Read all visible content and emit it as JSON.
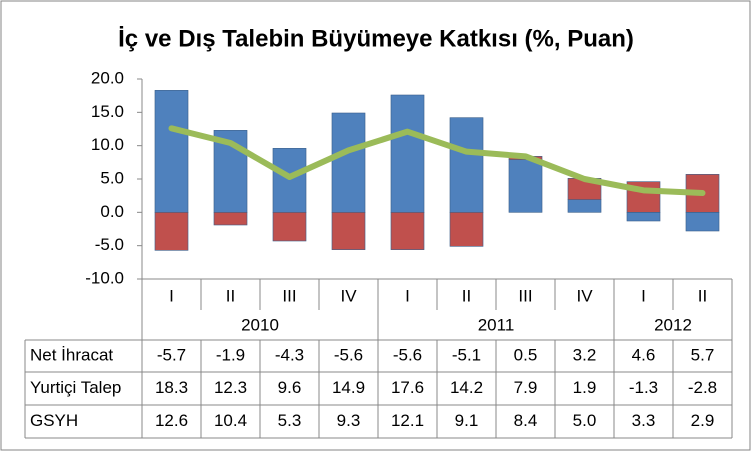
{
  "chart_data": {
    "type": "bar",
    "title": "İç ve Dış Talebin Büyümeye Katkısı (%, Puan)",
    "categories": [
      "I",
      "II",
      "III",
      "IV",
      "I",
      "II",
      "III",
      "IV",
      "I",
      "II"
    ],
    "year_labels": [
      "2010",
      "2011",
      "2012"
    ],
    "series": [
      {
        "name": "Net İhracat",
        "color": "#c0504d",
        "values": [
          -5.7,
          -1.9,
          -4.3,
          -5.6,
          -5.6,
          -5.1,
          0.5,
          3.2,
          4.6,
          5.7
        ]
      },
      {
        "name": "Yurtiçi Talep",
        "color": "#4f81bd",
        "values": [
          18.3,
          12.3,
          9.6,
          14.9,
          17.6,
          14.2,
          7.9,
          1.9,
          -1.3,
          -2.8
        ]
      },
      {
        "name": "GSYH",
        "type": "line",
        "color": "#9bbb59",
        "values": [
          12.6,
          10.4,
          5.3,
          9.3,
          12.1,
          9.1,
          8.4,
          5.0,
          3.3,
          2.9
        ],
        "value_labels": [
          "12.6",
          "10.4",
          "5.3",
          "9.3",
          "12.1",
          "9.1",
          "8.4",
          "5.0",
          "3.3",
          "2.9"
        ]
      }
    ],
    "ylim": [
      -10,
      20
    ],
    "yticks": [
      {
        "value": -10,
        "label": "-10.0"
      },
      {
        "value": -5,
        "label": "-5.0"
      },
      {
        "value": 0,
        "label": "0.0"
      },
      {
        "value": 5,
        "label": "5.0"
      },
      {
        "value": 10,
        "label": "10.0"
      },
      {
        "value": 15,
        "label": "15.0"
      },
      {
        "value": 20,
        "label": "20.0"
      }
    ]
  }
}
